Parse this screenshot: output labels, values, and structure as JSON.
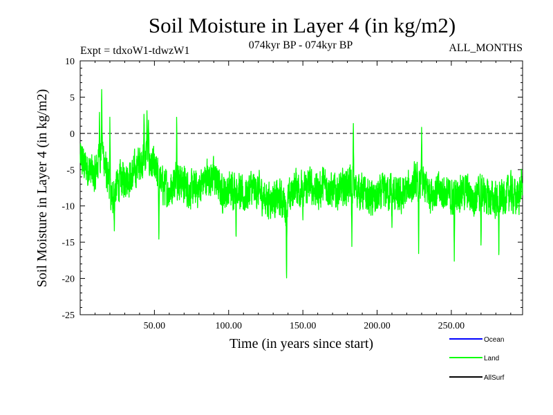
{
  "chart_data": {
    "type": "line",
    "title": "Soil Moisture in Layer 4 (in kg/m2)",
    "subtitle_left": "Expt = tdxoW1-tdwzW1",
    "subtitle_center": "074kyr BP - 074kyr BP",
    "subtitle_right": "ALL_MONTHS",
    "xlabel": "Time (in years since start)",
    "ylabel": "Soil Moisture in Layer 4 (in kg/m2)",
    "xlim": [
      0,
      298
    ],
    "ylim": [
      -25,
      10
    ],
    "x_ticks": [
      50,
      100,
      150,
      200,
      250
    ],
    "x_tick_labels": [
      "50.00",
      "100.00",
      "150.00",
      "200.00",
      "250.00"
    ],
    "y_ticks": [
      -25,
      -20,
      -15,
      -10,
      -5,
      0,
      5,
      10
    ],
    "y_tick_labels": [
      "-25",
      "-20",
      "-15",
      "-10",
      "-5",
      "0",
      "5",
      "10"
    ],
    "reference_line_y": 0,
    "legend_position": "bottom-right",
    "series": [
      {
        "name": "Ocean",
        "color": "#0000ff",
        "values": []
      },
      {
        "name": "Land",
        "color": "#00ff00",
        "x_step_years": 0.0833,
        "trend": [
          [
            0,
            -3.5
          ],
          [
            3,
            -4.5
          ],
          [
            6,
            -5
          ],
          [
            10,
            -6
          ],
          [
            13,
            -3
          ],
          [
            15,
            -2
          ],
          [
            18,
            -6
          ],
          [
            21,
            -9
          ],
          [
            25,
            -7
          ],
          [
            30,
            -6
          ],
          [
            35,
            -6
          ],
          [
            40,
            -4
          ],
          [
            45,
            -3
          ],
          [
            50,
            -5
          ],
          [
            55,
            -7
          ],
          [
            60,
            -8
          ],
          [
            65,
            -6
          ],
          [
            70,
            -7
          ],
          [
            75,
            -8
          ],
          [
            80,
            -7.5
          ],
          [
            85,
            -6
          ],
          [
            90,
            -6
          ],
          [
            95,
            -8
          ],
          [
            100,
            -8
          ],
          [
            105,
            -7
          ],
          [
            110,
            -9
          ],
          [
            115,
            -7.5
          ],
          [
            120,
            -8
          ],
          [
            125,
            -9
          ],
          [
            130,
            -9
          ],
          [
            135,
            -9
          ],
          [
            139,
            -10
          ],
          [
            145,
            -7
          ],
          [
            150,
            -8
          ],
          [
            155,
            -7
          ],
          [
            160,
            -8
          ],
          [
            165,
            -7
          ],
          [
            170,
            -8
          ],
          [
            175,
            -8
          ],
          [
            180,
            -7
          ],
          [
            185,
            -7.5
          ],
          [
            190,
            -8
          ],
          [
            195,
            -9
          ],
          [
            200,
            -9
          ],
          [
            205,
            -8
          ],
          [
            210,
            -8
          ],
          [
            215,
            -9
          ],
          [
            220,
            -8
          ],
          [
            225,
            -7
          ],
          [
            230,
            -7
          ],
          [
            235,
            -8
          ],
          [
            240,
            -8
          ],
          [
            245,
            -8
          ],
          [
            250,
            -9
          ],
          [
            255,
            -8
          ],
          [
            260,
            -8
          ],
          [
            265,
            -9
          ],
          [
            270,
            -8
          ],
          [
            275,
            -9
          ],
          [
            280,
            -9
          ],
          [
            285,
            -9
          ],
          [
            290,
            -8
          ],
          [
            294,
            -9
          ],
          [
            298,
            -7
          ]
        ],
        "spikes": [
          [
            14.5,
            6.2
          ],
          [
            13,
            3
          ],
          [
            45,
            3.4
          ],
          [
            43,
            3
          ],
          [
            65,
            3
          ],
          [
            46,
            2
          ],
          [
            20,
            2.5
          ],
          [
            184,
            1.6
          ],
          [
            230,
            1
          ],
          [
            139,
            -20.7
          ],
          [
            23,
            -13.6
          ],
          [
            53,
            -15
          ],
          [
            105,
            -14.8
          ],
          [
            183,
            -15.8
          ],
          [
            228,
            -16.8
          ],
          [
            252,
            -18.2
          ],
          [
            270,
            -16
          ],
          [
            282,
            -17.6
          ],
          [
            150,
            -12.2
          ],
          [
            210,
            -13
          ]
        ],
        "range_note": "monthly values oscillating roughly between -21 and 6"
      },
      {
        "name": "AllSurf",
        "color": "#000000",
        "values": []
      }
    ]
  }
}
